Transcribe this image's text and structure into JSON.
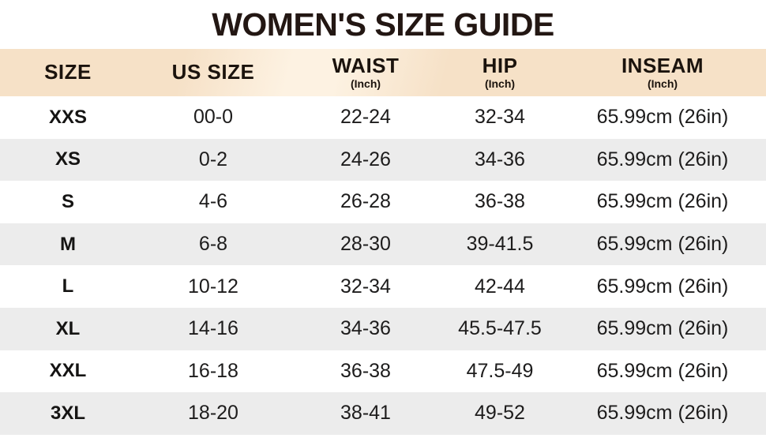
{
  "title": "WOMEN'S SIZE GUIDE",
  "colors": {
    "background": "#ffffff",
    "title_text": "#231713",
    "header_bg": "#f6e1c7",
    "header_sheen": "#fdf2e2",
    "header_text": "#1b130d",
    "row_bg": "#ffffff",
    "row_alt_bg": "#ececec",
    "cell_text": "#1d1c1c"
  },
  "chart_data": {
    "type": "table",
    "title": "WOMEN'S SIZE GUIDE",
    "columns": [
      {
        "label": "SIZE",
        "sub": ""
      },
      {
        "label": "US SIZE",
        "sub": ""
      },
      {
        "label": "WAIST",
        "sub": "(Inch)"
      },
      {
        "label": "HIP",
        "sub": "(Inch)"
      },
      {
        "label": "INSEAM",
        "sub": "(Inch)"
      }
    ],
    "rows": [
      [
        "XXS",
        "00-0",
        "22-24",
        "32-34",
        "65.99cm (26in)"
      ],
      [
        "XS",
        "0-2",
        "24-26",
        "34-36",
        "65.99cm (26in)"
      ],
      [
        "S",
        "4-6",
        "26-28",
        "36-38",
        "65.99cm (26in)"
      ],
      [
        "M",
        "6-8",
        "28-30",
        "39-41.5",
        "65.99cm (26in)"
      ],
      [
        "L",
        "10-12",
        "32-34",
        "42-44",
        "65.99cm (26in)"
      ],
      [
        "XL",
        "14-16",
        "34-36",
        "45.5-47.5",
        "65.99cm (26in)"
      ],
      [
        "XXL",
        "16-18",
        "36-38",
        "47.5-49",
        "65.99cm (26in)"
      ],
      [
        "3XL",
        "18-20",
        "38-41",
        "49-52",
        "65.99cm (26in)"
      ]
    ]
  }
}
